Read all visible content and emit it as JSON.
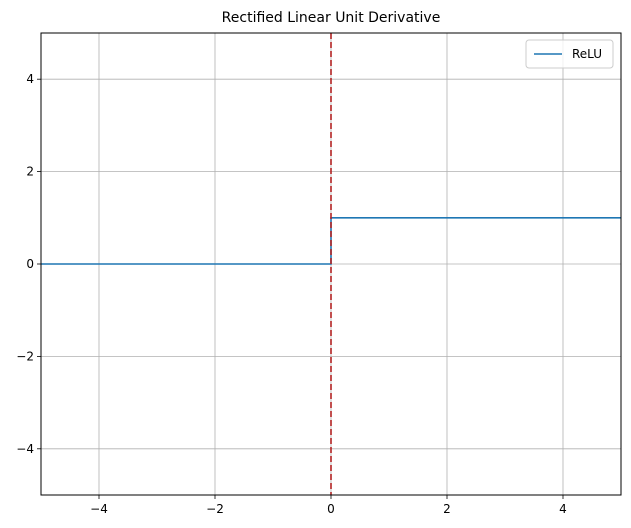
{
  "chart_data": {
    "type": "line",
    "title": "Rectified Linear Unit Derivative",
    "xlabel": "",
    "ylabel": "",
    "xlim": [
      -5,
      5
    ],
    "ylim": [
      -5,
      5
    ],
    "xticks": [
      -4,
      -2,
      0,
      2,
      4
    ],
    "yticks": [
      -4,
      -2,
      0,
      2,
      4
    ],
    "grid": true,
    "legend_position": "upper right",
    "series": [
      {
        "name": "ReLU",
        "color": "#1f77b4",
        "style": "solid",
        "x": [
          -5,
          0,
          0,
          5
        ],
        "y": [
          0,
          0,
          1,
          1
        ]
      }
    ],
    "vlines": [
      {
        "x": 0,
        "color": "#b22222",
        "style": "dashed"
      }
    ]
  }
}
